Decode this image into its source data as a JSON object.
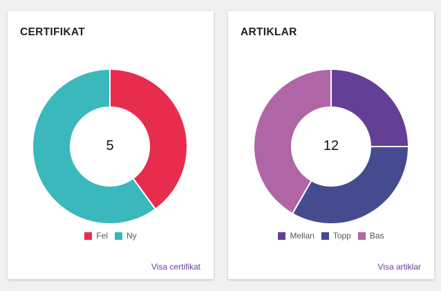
{
  "cards": [
    {
      "title": "CERTIFIKAT",
      "total": "5",
      "link_label": "Visa certifikat",
      "segments": [
        {
          "label": "Fel",
          "value": 2,
          "color": "#e72c4e"
        },
        {
          "label": "Ny",
          "value": 3,
          "color": "#3bb8bb"
        }
      ]
    },
    {
      "title": "ARTIKLAR",
      "total": "12",
      "link_label": "Visa artiklar",
      "segments": [
        {
          "label": "Mellan",
          "value": 3,
          "color": "#643f96"
        },
        {
          "label": "Topp",
          "value": 4,
          "color": "#464b90"
        },
        {
          "label": "Bas",
          "value": 5,
          "color": "#b065a6"
        }
      ]
    }
  ]
}
